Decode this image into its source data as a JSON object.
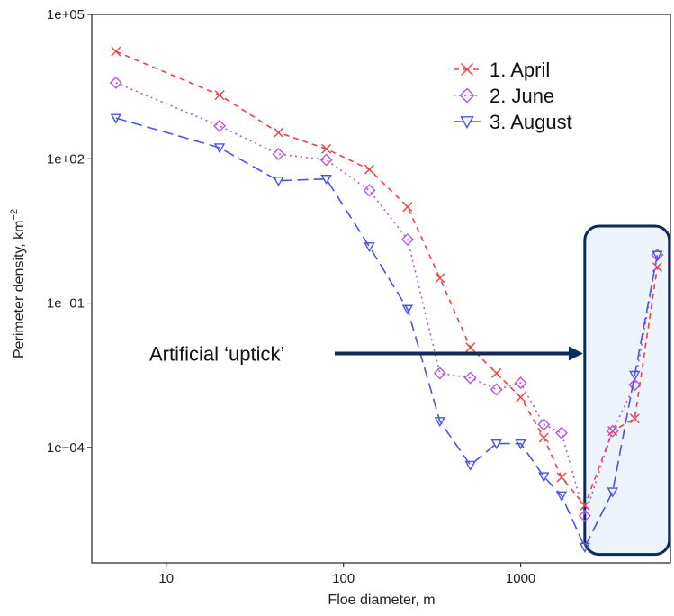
{
  "chart_data": {
    "type": "line",
    "xlabel": "Floe diameter, m",
    "ylabel": "Perimeter density, km",
    "ylabel_sup": "−2",
    "x_scale": "log",
    "y_scale": "log",
    "xlim": [
      3.8,
      7000
    ],
    "ylim": [
      4e-07,
      100000
    ],
    "x_ticks": [
      {
        "value": 10,
        "label": "10"
      },
      {
        "value": 100,
        "label": "100"
      },
      {
        "value": 1000,
        "label": "1000"
      }
    ],
    "y_ticks": [
      {
        "value": 0.0001,
        "label": "1e−04"
      },
      {
        "value": 0.1,
        "label": "1e−01"
      },
      {
        "value": 100,
        "label": "1e+02"
      },
      {
        "value": 100000,
        "label": "1e+05"
      }
    ],
    "grid": false,
    "legend_position": "top-right",
    "series": [
      {
        "name": "1. April",
        "color": "#f04040",
        "marker": "x",
        "dash": "6,5",
        "points": [
          [
            5.2,
            17000
          ],
          [
            20,
            2100
          ],
          [
            43,
            350
          ],
          [
            80,
            160
          ],
          [
            140,
            60
          ],
          [
            230,
            10
          ],
          [
            350,
            0.33
          ],
          [
            520,
            0.012
          ],
          [
            730,
            0.0035
          ],
          [
            1000,
            0.0011
          ],
          [
            1350,
            0.00016
          ],
          [
            1700,
            2.4e-05
          ],
          [
            2300,
            6.2e-06
          ],
          [
            3300,
            0.00022
          ],
          [
            4400,
            0.0004
          ],
          [
            5900,
            0.56
          ]
        ]
      },
      {
        "name": "2. June",
        "color": "#b356e0",
        "marker": "diamond",
        "dash": "2,4",
        "points": [
          [
            5.2,
            3800
          ],
          [
            20,
            480
          ],
          [
            43,
            125
          ],
          [
            80,
            95
          ],
          [
            140,
            22
          ],
          [
            230,
            2.1
          ],
          [
            350,
            0.0035
          ],
          [
            520,
            0.0028
          ],
          [
            730,
            0.0016
          ],
          [
            1000,
            0.0022
          ],
          [
            1350,
            0.0003
          ],
          [
            1700,
            0.0002
          ],
          [
            2300,
            3.8e-06
          ],
          [
            3300,
            0.00022
          ],
          [
            4400,
            0.002
          ],
          [
            5900,
            1
          ]
        ]
      },
      {
        "name": "3. August",
        "color": "#4a54e8",
        "marker": "triangle-down",
        "dash": "12,6",
        "points": [
          [
            5.2,
            700
          ],
          [
            20,
            170
          ],
          [
            43,
            35
          ],
          [
            80,
            38
          ],
          [
            140,
            1.5
          ],
          [
            230,
            0.075
          ],
          [
            350,
            0.00035
          ],
          [
            520,
            4.3e-05
          ],
          [
            730,
            0.00012
          ],
          [
            1000,
            0.00012
          ],
          [
            1350,
            2.5e-05
          ],
          [
            1700,
            1e-05
          ],
          [
            2300,
            8.5e-07
          ],
          [
            3300,
            1.2e-05
          ],
          [
            4400,
            0.0032
          ],
          [
            5900,
            1
          ]
        ]
      }
    ],
    "annotations": [
      {
        "text": "Artificial ‘uptick’",
        "arrow_to_x": 2250,
        "arrow_y": 0.009
      }
    ],
    "highlight_region": {
      "x": [
        2300,
        6900
      ],
      "y": [
        6e-07,
        4
      ]
    },
    "colors": {
      "axis": "#333333",
      "annotation_arrow": "#0d2a5c",
      "highlight_fill": "#eef4fd",
      "highlight_stroke": "#0d2a5c"
    }
  }
}
